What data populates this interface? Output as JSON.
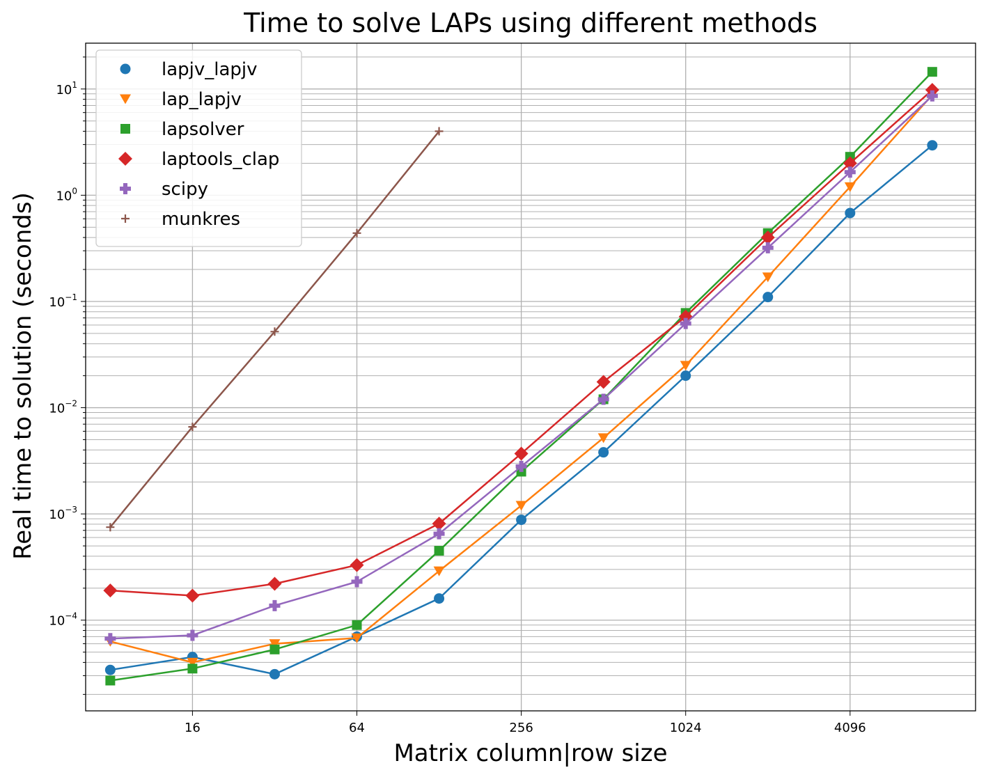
{
  "chart_data": {
    "type": "line",
    "title": "Time to solve LAPs using different methods",
    "xlabel": "Matrix column|row size",
    "ylabel": "Real time to solution (seconds)",
    "xscale": "log2",
    "yscale": "log10",
    "xlim": [
      6.5,
      11800
    ],
    "ylim": [
      1.4e-05,
      27
    ],
    "grid": true,
    "legend_position": "top-left",
    "x_ticks": [
      16,
      64,
      256,
      1024,
      4096
    ],
    "x_tick_labels": [
      "16",
      "64",
      "256",
      "1024",
      "4096"
    ],
    "y_ticks": [
      {
        "value": 0.0001,
        "base": "10",
        "exp": "−4"
      },
      {
        "value": 0.001,
        "base": "10",
        "exp": "−3"
      },
      {
        "value": 0.01,
        "base": "10",
        "exp": "−2"
      },
      {
        "value": 0.1,
        "base": "10",
        "exp": "−1"
      },
      {
        "value": 1,
        "base": "10",
        "exp": "0"
      },
      {
        "value": 10,
        "base": "10",
        "exp": "1"
      }
    ],
    "series": [
      {
        "name": "lapjv_lapjv",
        "color": "#1f77b4",
        "marker": "circle",
        "x": [
          8,
          16,
          32,
          64,
          128,
          256,
          512,
          1024,
          2048,
          4096,
          8192
        ],
        "y": [
          3.4e-05,
          4.5e-05,
          3.1e-05,
          7e-05,
          0.00016,
          0.00088,
          0.0038,
          0.02,
          0.11,
          0.68,
          2.95
        ]
      },
      {
        "name": "lap_lapjv",
        "color": "#ff7f0e",
        "marker": "triangle-down",
        "x": [
          8,
          16,
          32,
          64,
          128,
          256,
          512,
          1024,
          2048,
          4096,
          8192
        ],
        "y": [
          6.3e-05,
          4e-05,
          6e-05,
          6.8e-05,
          0.00029,
          0.0012,
          0.0052,
          0.025,
          0.17,
          1.2,
          8.8
        ]
      },
      {
        "name": "lapsolver",
        "color": "#2ca02c",
        "marker": "square",
        "x": [
          8,
          16,
          32,
          64,
          128,
          256,
          512,
          1024,
          2048,
          4096,
          8192
        ],
        "y": [
          2.7e-05,
          3.5e-05,
          5.3e-05,
          9e-05,
          0.00045,
          0.0025,
          0.012,
          0.078,
          0.44,
          2.3,
          14.5
        ]
      },
      {
        "name": "laptools_clap",
        "color": "#d62728",
        "marker": "diamond",
        "x": [
          8,
          16,
          32,
          64,
          128,
          256,
          512,
          1024,
          2048,
          4096,
          8192
        ],
        "y": [
          0.00019,
          0.00017,
          0.00022,
          0.00033,
          0.00081,
          0.0037,
          0.0175,
          0.072,
          0.4,
          2.0,
          9.8
        ]
      },
      {
        "name": "scipy",
        "color": "#9467bd",
        "marker": "plus-thick",
        "x": [
          8,
          16,
          32,
          64,
          128,
          256,
          512,
          1024,
          2048,
          4096,
          8192
        ],
        "y": [
          6.7e-05,
          7.2e-05,
          0.000137,
          0.00023,
          0.00065,
          0.0028,
          0.012,
          0.062,
          0.32,
          1.65,
          8.6
        ]
      },
      {
        "name": "munkres",
        "color": "#8c564b",
        "marker": "plus-thin",
        "x": [
          8,
          16,
          32,
          64,
          128
        ],
        "y": [
          0.00075,
          0.0066,
          0.052,
          0.44,
          4.0
        ]
      }
    ]
  }
}
